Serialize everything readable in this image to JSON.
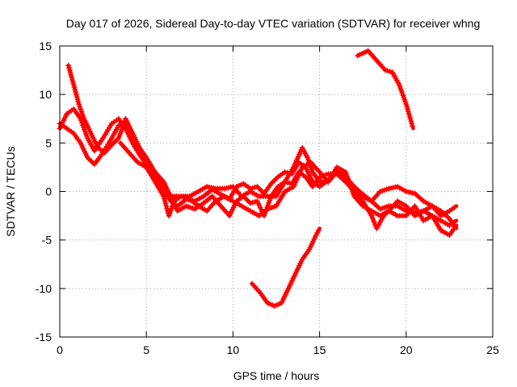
{
  "chart_data": {
    "type": "scatter",
    "title": "Day 017 of 2026, Sidereal Day-to-day VTEC variation (SDTVAR) for receiver whng",
    "xlabel": "GPS time / hours",
    "ylabel": "SDTVAR / TECUs",
    "xlim": [
      0,
      25
    ],
    "ylim": [
      -15,
      15
    ],
    "xticks": [
      0,
      5,
      10,
      15,
      20,
      25
    ],
    "yticks": [
      -15,
      -10,
      -5,
      0,
      5,
      10,
      15
    ],
    "grid": true,
    "series_color": "#ff0000",
    "series": [
      {
        "name": "track-a",
        "points": [
          [
            0,
            6.5
          ],
          [
            0.4,
            8
          ],
          [
            0.8,
            8.5
          ],
          [
            1.2,
            7.5
          ],
          [
            1.6,
            5.5
          ],
          [
            2.0,
            4.2
          ],
          [
            2.5,
            5.5
          ],
          [
            3.0,
            7.0
          ],
          [
            3.4,
            7.5
          ],
          [
            3.8,
            6.5
          ],
          [
            4.2,
            5.0
          ],
          [
            4.6,
            3.8
          ],
          [
            5.0,
            2.8
          ],
          [
            5.5,
            1.8
          ],
          [
            6.0,
            0.5
          ],
          [
            6.4,
            -1.0
          ],
          [
            6.8,
            -1.5
          ],
          [
            7.3,
            -0.8
          ],
          [
            7.8,
            -1.0
          ],
          [
            8.3,
            -0.5
          ],
          [
            8.8,
            0.2
          ],
          [
            9.3,
            -0.3
          ],
          [
            9.8,
            -0.8
          ],
          [
            10.2,
            0.5
          ],
          [
            10.6,
            0.8
          ],
          [
            11.0,
            0.3
          ],
          [
            11.4,
            0.5
          ],
          [
            11.8,
            -0.2
          ],
          [
            12.2,
            0.8
          ],
          [
            12.6,
            1.5
          ],
          [
            13.0,
            2.0
          ],
          [
            13.4,
            1.8
          ],
          [
            13.8,
            3.0
          ],
          [
            14.2,
            2.5
          ],
          [
            14.6,
            1.0
          ],
          [
            15.0,
            0.5
          ],
          [
            15.5,
            1.2
          ],
          [
            16.0,
            2.2
          ],
          [
            16.5,
            1.5
          ],
          [
            17.0,
            0.5
          ],
          [
            17.5,
            -0.3
          ],
          [
            18.0,
            -1.0
          ],
          [
            18.5,
            -1.8
          ],
          [
            19.0,
            -1.5
          ],
          [
            19.5,
            -1.5
          ],
          [
            20.0,
            -2.0
          ],
          [
            20.5,
            -2.2
          ],
          [
            21.0,
            -2.0
          ],
          [
            21.5,
            -2.5
          ],
          [
            22.0,
            -3.0
          ],
          [
            22.5,
            -3.5
          ],
          [
            22.9,
            -3.0
          ]
        ]
      },
      {
        "name": "track-b",
        "points": [
          [
            0,
            7.0
          ],
          [
            0.4,
            6.5
          ],
          [
            0.8,
            6.0
          ],
          [
            1.2,
            5.0
          ],
          [
            1.6,
            3.5
          ],
          [
            2.0,
            2.8
          ],
          [
            2.5,
            4.0
          ],
          [
            3.0,
            5.5
          ],
          [
            3.4,
            6.8
          ],
          [
            3.8,
            7.2
          ],
          [
            4.2,
            6.0
          ],
          [
            4.6,
            4.5
          ],
          [
            5.0,
            3.5
          ],
          [
            5.5,
            2.0
          ],
          [
            6.0,
            1.0
          ],
          [
            6.4,
            -0.5
          ],
          [
            6.8,
            -2.0
          ],
          [
            7.3,
            -1.5
          ],
          [
            7.8,
            -1.8
          ],
          [
            8.3,
            -1.2
          ],
          [
            8.8,
            -0.5
          ],
          [
            9.3,
            -1.5
          ],
          [
            9.8,
            -2.5
          ],
          [
            10.2,
            -1.0
          ],
          [
            10.6,
            -0.5
          ],
          [
            11.0,
            -1.2
          ],
          [
            11.4,
            -1.0
          ],
          [
            11.8,
            -2.5
          ],
          [
            12.2,
            -0.5
          ],
          [
            12.6,
            0.5
          ],
          [
            13.0,
            1.0
          ],
          [
            13.4,
            0.8
          ],
          [
            13.8,
            2.0
          ],
          [
            14.2,
            1.5
          ],
          [
            14.6,
            0.5
          ],
          [
            15.0,
            1.5
          ],
          [
            15.5,
            1.8
          ],
          [
            16.0,
            1.8
          ],
          [
            16.5,
            1.0
          ],
          [
            17.0,
            0.0
          ],
          [
            17.5,
            -1.0
          ],
          [
            18.0,
            -2.5
          ],
          [
            18.3,
            -3.8
          ],
          [
            18.7,
            -2.5
          ],
          [
            19.0,
            -2.0
          ],
          [
            19.5,
            -2.5
          ],
          [
            20.0,
            -2.5
          ],
          [
            20.5,
            -1.5
          ],
          [
            21.0,
            -3.0
          ],
          [
            21.5,
            -2.5
          ],
          [
            22.0,
            -4.0
          ],
          [
            22.5,
            -4.5
          ],
          [
            22.9,
            -3.5
          ]
        ]
      },
      {
        "name": "track-c",
        "points": [
          [
            0.5,
            13.0
          ],
          [
            0.8,
            11.0
          ],
          [
            1.1,
            9.0
          ],
          [
            1.4,
            7.5
          ],
          [
            1.8,
            6.0
          ],
          [
            2.2,
            4.5
          ],
          [
            2.6,
            4.0
          ],
          [
            3.0,
            4.8
          ],
          [
            3.4,
            5.5
          ],
          [
            3.8,
            7.5
          ],
          [
            4.2,
            6.0
          ],
          [
            4.6,
            4.5
          ],
          [
            5.0,
            3.0
          ],
          [
            5.5,
            1.5
          ],
          [
            6.0,
            -0.5
          ],
          [
            6.3,
            -2.5
          ],
          [
            6.6,
            -1.0
          ],
          [
            7.0,
            -0.5
          ],
          [
            7.5,
            -0.8
          ],
          [
            8.0,
            -1.5
          ],
          [
            8.5,
            -2.0
          ],
          [
            9.0,
            -1.0
          ],
          [
            9.5,
            -0.5
          ],
          [
            10.0,
            -1.0
          ],
          [
            10.5,
            -1.5
          ],
          [
            11.0,
            -2.0
          ],
          [
            11.5,
            -2.5
          ],
          [
            12.0,
            -1.8
          ],
          [
            12.5,
            -1.5
          ],
          [
            13.0,
            0.0
          ],
          [
            13.5,
            0.5
          ],
          [
            14.0,
            2.5
          ],
          [
            14.5,
            3.0
          ],
          [
            15.0,
            2.0
          ],
          [
            15.5,
            1.0
          ],
          [
            16.0,
            2.5
          ],
          [
            16.5,
            2.0
          ],
          [
            17.0,
            -0.5
          ],
          [
            17.5,
            -1.5
          ],
          [
            18.0,
            -2.0
          ],
          [
            18.5,
            -2.5
          ],
          [
            19.0,
            -2.0
          ],
          [
            19.5,
            -1.0
          ],
          [
            20.0,
            -1.5
          ],
          [
            20.5,
            -2.5
          ],
          [
            21.0,
            -2.0
          ],
          [
            21.5,
            -1.5
          ],
          [
            22.0,
            -2.5
          ],
          [
            22.5,
            -2.0
          ],
          [
            22.9,
            -1.5
          ]
        ]
      },
      {
        "name": "track-d",
        "points": [
          [
            3.5,
            5.0
          ],
          [
            4.0,
            4.0
          ],
          [
            4.5,
            3.0
          ],
          [
            5.0,
            2.5
          ],
          [
            5.5,
            1.0
          ],
          [
            6.0,
            -0.5
          ],
          [
            6.5,
            -0.5
          ],
          [
            7.0,
            -0.5
          ],
          [
            7.5,
            -0.5
          ],
          [
            8.0,
            0.0
          ],
          [
            8.5,
            0.5
          ],
          [
            9.0,
            0.3
          ],
          [
            9.5,
            0.3
          ],
          [
            10.0,
            0.5
          ],
          [
            10.5,
            -0.5
          ],
          [
            11.0,
            0.0
          ],
          [
            11.5,
            -0.5
          ],
          [
            12.0,
            -0.5
          ],
          [
            12.5,
            -0.5
          ],
          [
            13.0,
            1.0
          ],
          [
            13.5,
            2.5
          ],
          [
            14.0,
            4.5
          ],
          [
            14.3,
            3.5
          ],
          [
            14.6,
            2.0
          ],
          [
            15.0,
            1.0
          ],
          [
            15.5,
            1.0
          ],
          [
            16.0,
            2.0
          ],
          [
            16.5,
            1.5
          ],
          [
            17.0,
            0.5
          ],
          [
            17.5,
            -0.5
          ],
          [
            18.0,
            -1.0
          ],
          [
            18.5,
            0.0
          ],
          [
            19.0,
            0.3
          ],
          [
            19.5,
            0.5
          ],
          [
            20.0,
            0.0
          ],
          [
            20.5,
            -0.2
          ],
          [
            21.0,
            -1.0
          ],
          [
            21.5,
            -1.5
          ],
          [
            22.0,
            -2.0
          ],
          [
            22.5,
            -2.8
          ],
          [
            22.9,
            -3.8
          ]
        ]
      },
      {
        "name": "evening-high",
        "points": [
          [
            17.2,
            14.0
          ],
          [
            17.8,
            14.5
          ],
          [
            18.3,
            13.5
          ],
          [
            18.8,
            12.5
          ],
          [
            19.2,
            12.3
          ],
          [
            19.6,
            11.0
          ],
          [
            20.0,
            9.0
          ],
          [
            20.4,
            6.5
          ]
        ]
      },
      {
        "name": "midday-low",
        "points": [
          [
            11.1,
            -9.5
          ],
          [
            11.6,
            -10.5
          ],
          [
            12.0,
            -11.5
          ],
          [
            12.4,
            -11.8
          ],
          [
            12.8,
            -11.5
          ],
          [
            13.2,
            -10.0
          ],
          [
            13.6,
            -8.5
          ],
          [
            14.0,
            -7.0
          ],
          [
            14.4,
            -6.0
          ],
          [
            14.8,
            -4.5
          ],
          [
            15.0,
            -3.8
          ]
        ]
      }
    ]
  }
}
